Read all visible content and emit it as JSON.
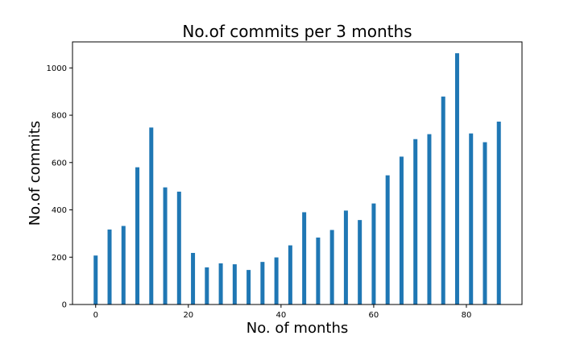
{
  "chart_data": {
    "type": "bar",
    "title": "No.of commits per 3 months",
    "xlabel": "No. of months",
    "ylabel": "No.of commits",
    "x": [
      0,
      3,
      6,
      9,
      12,
      15,
      18,
      21,
      24,
      27,
      30,
      33,
      36,
      39,
      42,
      45,
      48,
      51,
      54,
      57,
      60,
      63,
      66,
      69,
      72,
      75,
      78,
      81,
      84,
      87
    ],
    "values": [
      207,
      317,
      332,
      580,
      748,
      495,
      477,
      218,
      157,
      174,
      170,
      146,
      180,
      199,
      250,
      390,
      283,
      315,
      397,
      357,
      427,
      546,
      625,
      699,
      720,
      879,
      1062,
      723,
      686,
      773
    ],
    "xlim": [
      -5,
      92
    ],
    "ylim": [
      0,
      1110
    ],
    "xticks": [
      0,
      20,
      40,
      60,
      80
    ],
    "yticks": [
      0,
      200,
      400,
      600,
      800,
      1000
    ],
    "bar_color": "#1f77b4",
    "grid": false,
    "legend": "none"
  }
}
